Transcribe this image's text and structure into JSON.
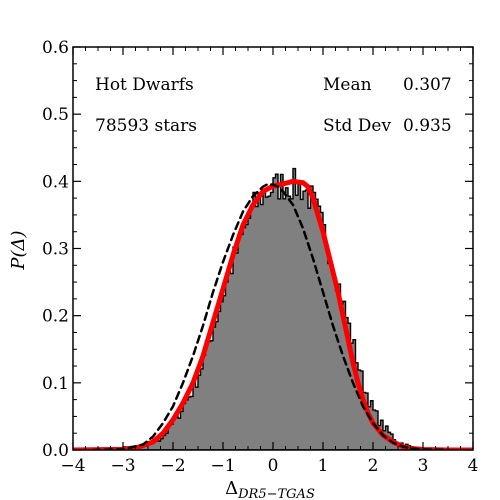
{
  "chart_data": {
    "type": "histogram",
    "xlabel_base": "Δ",
    "xlabel_sub": "DR5−TGAS",
    "ylabel": "P(Δ)",
    "xlim": [
      -4,
      4
    ],
    "ylim": [
      0,
      0.6
    ],
    "xticks": [
      -4,
      -3,
      -2,
      -1,
      0,
      1,
      2,
      3,
      4
    ],
    "yticks": [
      0.0,
      0.1,
      0.2,
      0.3,
      0.4,
      0.5,
      0.6
    ],
    "ytick_labels": [
      "0.0",
      "0.1",
      "0.2",
      "0.3",
      "0.4",
      "0.5",
      "0.6"
    ],
    "annotations": {
      "sample": "Hot Dwarfs",
      "count": "78593 stars",
      "mean_label": "Mean",
      "mean_value": "0.307",
      "std_label": "Std Dev",
      "std_value": "0.935"
    },
    "histogram": {
      "bin_width": 0.05,
      "x_start": -4,
      "x_end": 4,
      "profile_points": [
        [
          -4.0,
          0.0
        ],
        [
          -2.6,
          0.004
        ],
        [
          -2.2,
          0.02
        ],
        [
          -2.0,
          0.04
        ],
        [
          -1.8,
          0.065
        ],
        [
          -1.6,
          0.09
        ],
        [
          -1.4,
          0.13
        ],
        [
          -1.2,
          0.18
        ],
        [
          -1.0,
          0.23
        ],
        [
          -0.8,
          0.28
        ],
        [
          -0.6,
          0.32
        ],
        [
          -0.4,
          0.36
        ],
        [
          -0.2,
          0.38
        ],
        [
          0.0,
          0.39
        ],
        [
          0.2,
          0.395
        ],
        [
          0.4,
          0.395
        ],
        [
          0.6,
          0.39
        ],
        [
          0.8,
          0.37
        ],
        [
          1.0,
          0.33
        ],
        [
          1.2,
          0.28
        ],
        [
          1.4,
          0.22
        ],
        [
          1.6,
          0.16
        ],
        [
          1.8,
          0.1
        ],
        [
          2.0,
          0.06
        ],
        [
          2.2,
          0.035
        ],
        [
          2.5,
          0.012
        ],
        [
          2.8,
          0.003
        ],
        [
          3.2,
          0.0
        ],
        [
          4.0,
          0.0
        ]
      ]
    },
    "series": [
      {
        "style": "solid-red",
        "color": "#ff0000",
        "points": [
          [
            -4.0,
            0.0
          ],
          [
            -3.0,
            0.001
          ],
          [
            -2.7,
            0.004
          ],
          [
            -2.4,
            0.012
          ],
          [
            -2.2,
            0.025
          ],
          [
            -2.0,
            0.045
          ],
          [
            -1.8,
            0.07
          ],
          [
            -1.6,
            0.1
          ],
          [
            -1.4,
            0.14
          ],
          [
            -1.2,
            0.19
          ],
          [
            -1.0,
            0.24
          ],
          [
            -0.8,
            0.29
          ],
          [
            -0.6,
            0.335
          ],
          [
            -0.4,
            0.365
          ],
          [
            -0.2,
            0.385
          ],
          [
            0.0,
            0.393
          ],
          [
            0.2,
            0.396
          ],
          [
            0.4,
            0.4
          ],
          [
            0.6,
            0.398
          ],
          [
            0.7,
            0.392
          ],
          [
            0.8,
            0.375
          ],
          [
            0.9,
            0.35
          ],
          [
            1.0,
            0.325
          ],
          [
            1.1,
            0.295
          ],
          [
            1.2,
            0.265
          ],
          [
            1.3,
            0.235
          ],
          [
            1.4,
            0.2
          ],
          [
            1.5,
            0.165
          ],
          [
            1.6,
            0.13
          ],
          [
            1.7,
            0.1
          ],
          [
            1.8,
            0.075
          ],
          [
            1.9,
            0.055
          ],
          [
            2.0,
            0.04
          ],
          [
            2.2,
            0.022
          ],
          [
            2.4,
            0.012
          ],
          [
            2.6,
            0.005
          ],
          [
            2.8,
            0.002
          ],
          [
            3.0,
            0.0007
          ],
          [
            3.5,
            0.0
          ],
          [
            4.0,
            0.0
          ]
        ]
      },
      {
        "style": "dashed-black",
        "color": "#000000",
        "points": [
          [
            -3.6,
            0.0
          ],
          [
            -3.0,
            0.001
          ],
          [
            -2.6,
            0.008
          ],
          [
            -2.4,
            0.02
          ],
          [
            -2.2,
            0.04
          ],
          [
            -2.0,
            0.065
          ],
          [
            -1.8,
            0.1
          ],
          [
            -1.6,
            0.14
          ],
          [
            -1.4,
            0.185
          ],
          [
            -1.2,
            0.235
          ],
          [
            -1.0,
            0.28
          ],
          [
            -0.8,
            0.32
          ],
          [
            -0.6,
            0.355
          ],
          [
            -0.4,
            0.378
          ],
          [
            -0.2,
            0.392
          ],
          [
            -0.1,
            0.396
          ],
          [
            0.0,
            0.395
          ],
          [
            0.1,
            0.392
          ],
          [
            0.2,
            0.385
          ],
          [
            0.4,
            0.365
          ],
          [
            0.6,
            0.33
          ],
          [
            0.8,
            0.285
          ],
          [
            1.0,
            0.235
          ],
          [
            1.2,
            0.185
          ],
          [
            1.4,
            0.14
          ],
          [
            1.6,
            0.1
          ],
          [
            1.8,
            0.065
          ],
          [
            2.0,
            0.04
          ],
          [
            2.2,
            0.022
          ],
          [
            2.4,
            0.011
          ],
          [
            2.6,
            0.005
          ],
          [
            2.8,
            0.002
          ],
          [
            3.0,
            0.0008
          ],
          [
            3.5,
            0.0
          ]
        ]
      }
    ],
    "colors": {
      "histogram_fill": "#808080",
      "histogram_outline": "#000000",
      "fit_curve": "#ff0000",
      "reference_curve": "#000000"
    }
  }
}
